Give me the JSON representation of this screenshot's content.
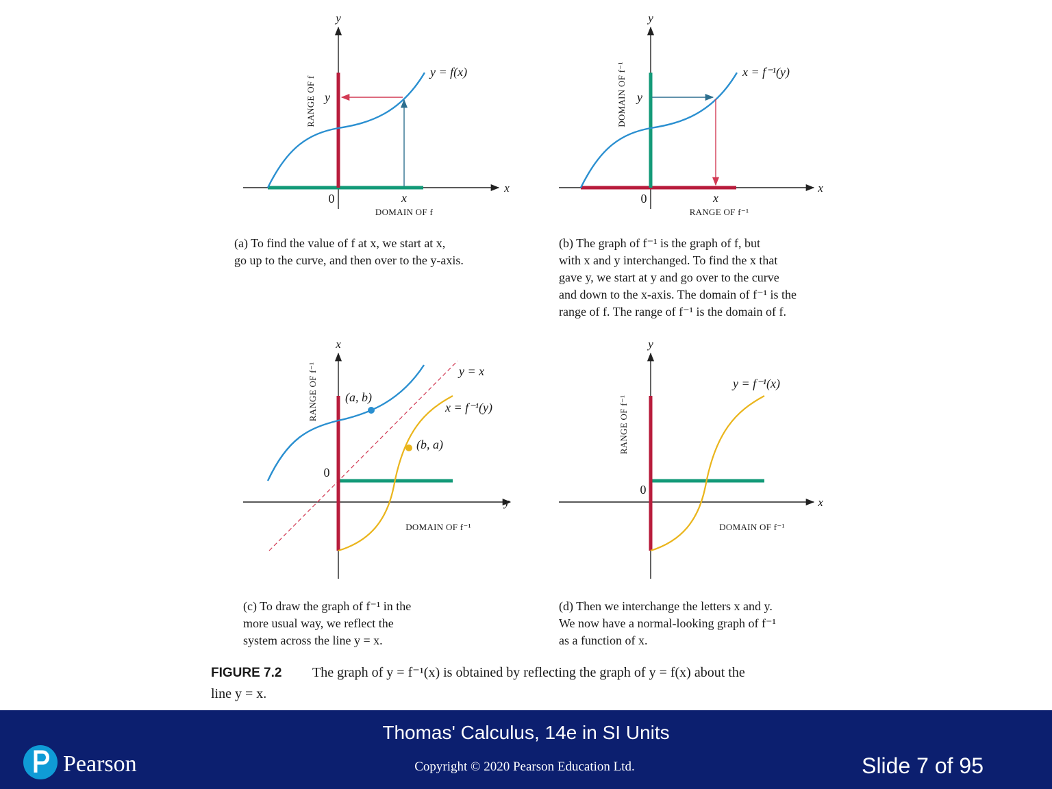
{
  "panels": [
    {
      "y_axis": "y",
      "x_axis": "x",
      "origin": "0",
      "curve_label": "y = f(x)",
      "y_mark": "y",
      "x_mark": "x",
      "vertical_label": "RANGE OF f",
      "horizontal_label": "DOMAIN OF f",
      "caption": [
        "(a) To find the value of f at x, we start at x,",
        "go up to the curve, and then over to the y-axis."
      ]
    },
    {
      "y_axis": "y",
      "x_axis": "x",
      "origin": "0",
      "curve_label": "x = f⁻¹(y)",
      "y_mark": "y",
      "x_mark": "x",
      "vertical_label": "DOMAIN OF f⁻¹",
      "horizontal_label": "RANGE OF f⁻¹",
      "caption": [
        "(b) The graph of f⁻¹ is the graph of f, but",
        "with x and y interchanged. To find the x that",
        "gave y, we start at y and go over to the curve",
        "and down to the x-axis. The domain of f⁻¹ is the",
        "range of f. The range of f⁻¹ is the domain of f."
      ]
    },
    {
      "y_axis": "x",
      "x_axis": "y",
      "origin": "0",
      "line_label": "y = x",
      "curve_label": "x = f⁻¹(y)",
      "point_ab": "(a, b)",
      "point_ba": "(b, a)",
      "vertical_label": "RANGE OF f⁻¹",
      "horizontal_label": "DOMAIN OF f⁻¹",
      "caption": [
        "(c) To draw the graph of f⁻¹ in the",
        "more usual way, we reflect the",
        "system across the line y = x."
      ]
    },
    {
      "y_axis": "y",
      "x_axis": "x",
      "origin": "0",
      "curve_label": "y = f⁻¹(x)",
      "vertical_label": "RANGE OF f⁻¹",
      "horizontal_label": "DOMAIN OF f⁻¹",
      "caption": [
        "(d) Then we interchange the letters x and y.",
        "We now have a normal-looking graph of f⁻¹",
        "as a function of x."
      ]
    }
  ],
  "figure": {
    "label": "FIGURE 7.2",
    "text": [
      "The graph of y = f⁻¹(x) is obtained by reflecting the graph of y = f(x) about the",
      "line y = x."
    ]
  },
  "footer": {
    "logo": "Pearson",
    "title": "Thomas' Calculus, 14e in SI Units",
    "copyright": "Copyright © 2020 Pearson Education Ltd.",
    "slide": "Slide 7 of 95"
  }
}
